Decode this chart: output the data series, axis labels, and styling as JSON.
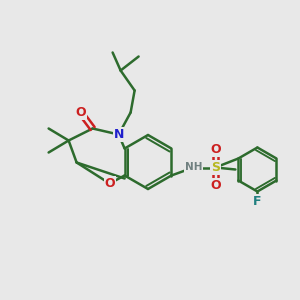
{
  "background_color": "#e8e8e8",
  "figure_size": [
    3.0,
    3.0
  ],
  "dpi": 100,
  "atom_colors": {
    "C": "#2d6b2d",
    "N": "#2020cc",
    "O": "#cc2020",
    "S": "#b8b820",
    "F": "#208080",
    "H": "#708080"
  },
  "bond_color": "#2d6b2d",
  "bond_width": 1.8,
  "font_size_atom": 9,
  "font_size_small": 7.5
}
